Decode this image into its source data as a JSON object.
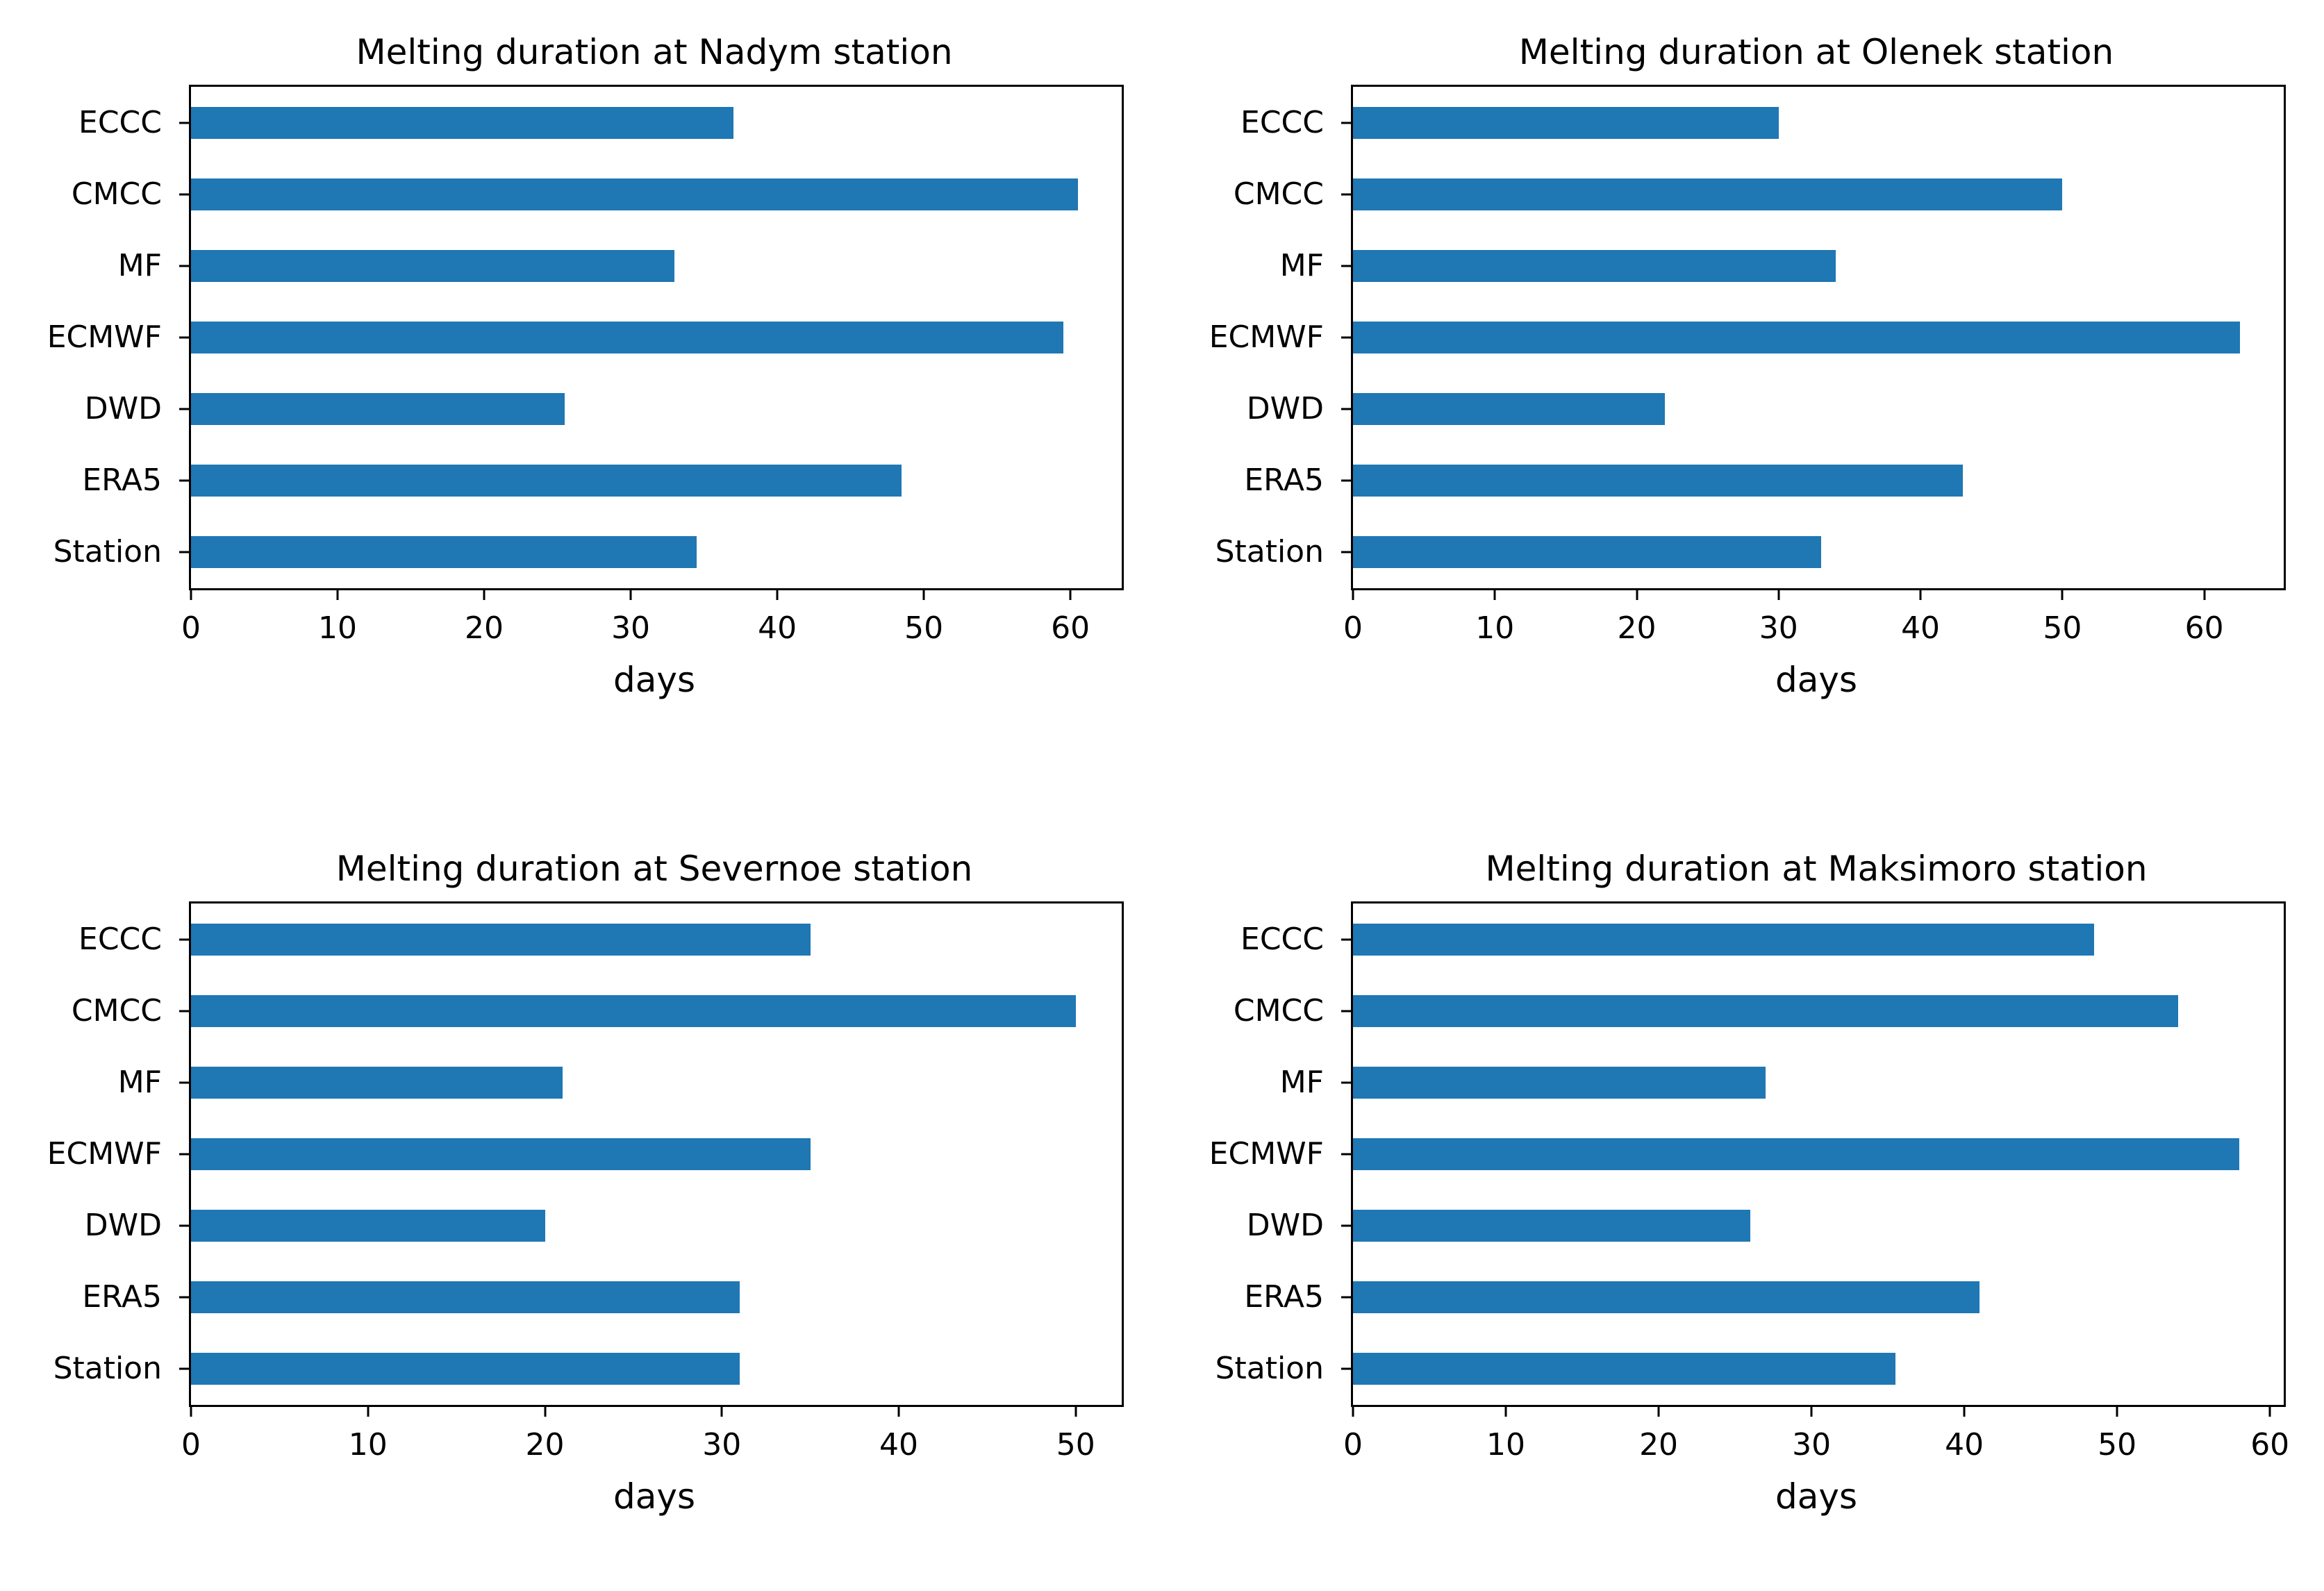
{
  "figure": {
    "background_color": "#ffffff",
    "bar_color": "#1f77b4",
    "axis_color": "#000000",
    "text_color": "#000000"
  },
  "chart_data": [
    {
      "type": "bar",
      "orientation": "horizontal",
      "title": "Melting duration at Nadym station",
      "xlabel": "days",
      "ylabel": "",
      "categories": [
        "ECCC",
        "CMCC",
        "MF",
        "ECMWF",
        "DWD",
        "ERA5",
        "Station"
      ],
      "values": [
        37,
        60.5,
        33,
        59.5,
        25.5,
        48.5,
        34.5
      ],
      "xlim": [
        0,
        63.5
      ],
      "xticks": [
        0,
        10,
        20,
        30,
        40,
        50,
        60
      ],
      "grid": false,
      "legend": false
    },
    {
      "type": "bar",
      "orientation": "horizontal",
      "title": "Melting duration at Olenek station",
      "xlabel": "days",
      "ylabel": "",
      "categories": [
        "ECCC",
        "CMCC",
        "MF",
        "ECMWF",
        "DWD",
        "ERA5",
        "Station"
      ],
      "values": [
        30,
        50,
        34,
        62.5,
        22,
        43,
        33
      ],
      "xlim": [
        0,
        65.6
      ],
      "xticks": [
        0,
        10,
        20,
        30,
        40,
        50,
        60
      ],
      "grid": false,
      "legend": false
    },
    {
      "type": "bar",
      "orientation": "horizontal",
      "title": "Melting duration at Severnoe station",
      "xlabel": "days",
      "ylabel": "",
      "categories": [
        "ECCC",
        "CMCC",
        "MF",
        "ECMWF",
        "DWD",
        "ERA5",
        "Station"
      ],
      "values": [
        35,
        50,
        21,
        35,
        20,
        31,
        31
      ],
      "xlim": [
        0,
        52.6
      ],
      "xticks": [
        0,
        10,
        20,
        30,
        40,
        50
      ],
      "grid": false,
      "legend": false
    },
    {
      "type": "bar",
      "orientation": "horizontal",
      "title": "Melting duration at Maksimoro station",
      "xlabel": "days",
      "ylabel": "",
      "categories": [
        "ECCC",
        "CMCC",
        "MF",
        "ECMWF",
        "DWD",
        "ERA5",
        "Station"
      ],
      "values": [
        48.5,
        54,
        27,
        58,
        26,
        41,
        35.5
      ],
      "xlim": [
        0,
        60.9
      ],
      "xticks": [
        0,
        10,
        20,
        30,
        40,
        50,
        60
      ],
      "grid": false,
      "legend": false
    }
  ]
}
